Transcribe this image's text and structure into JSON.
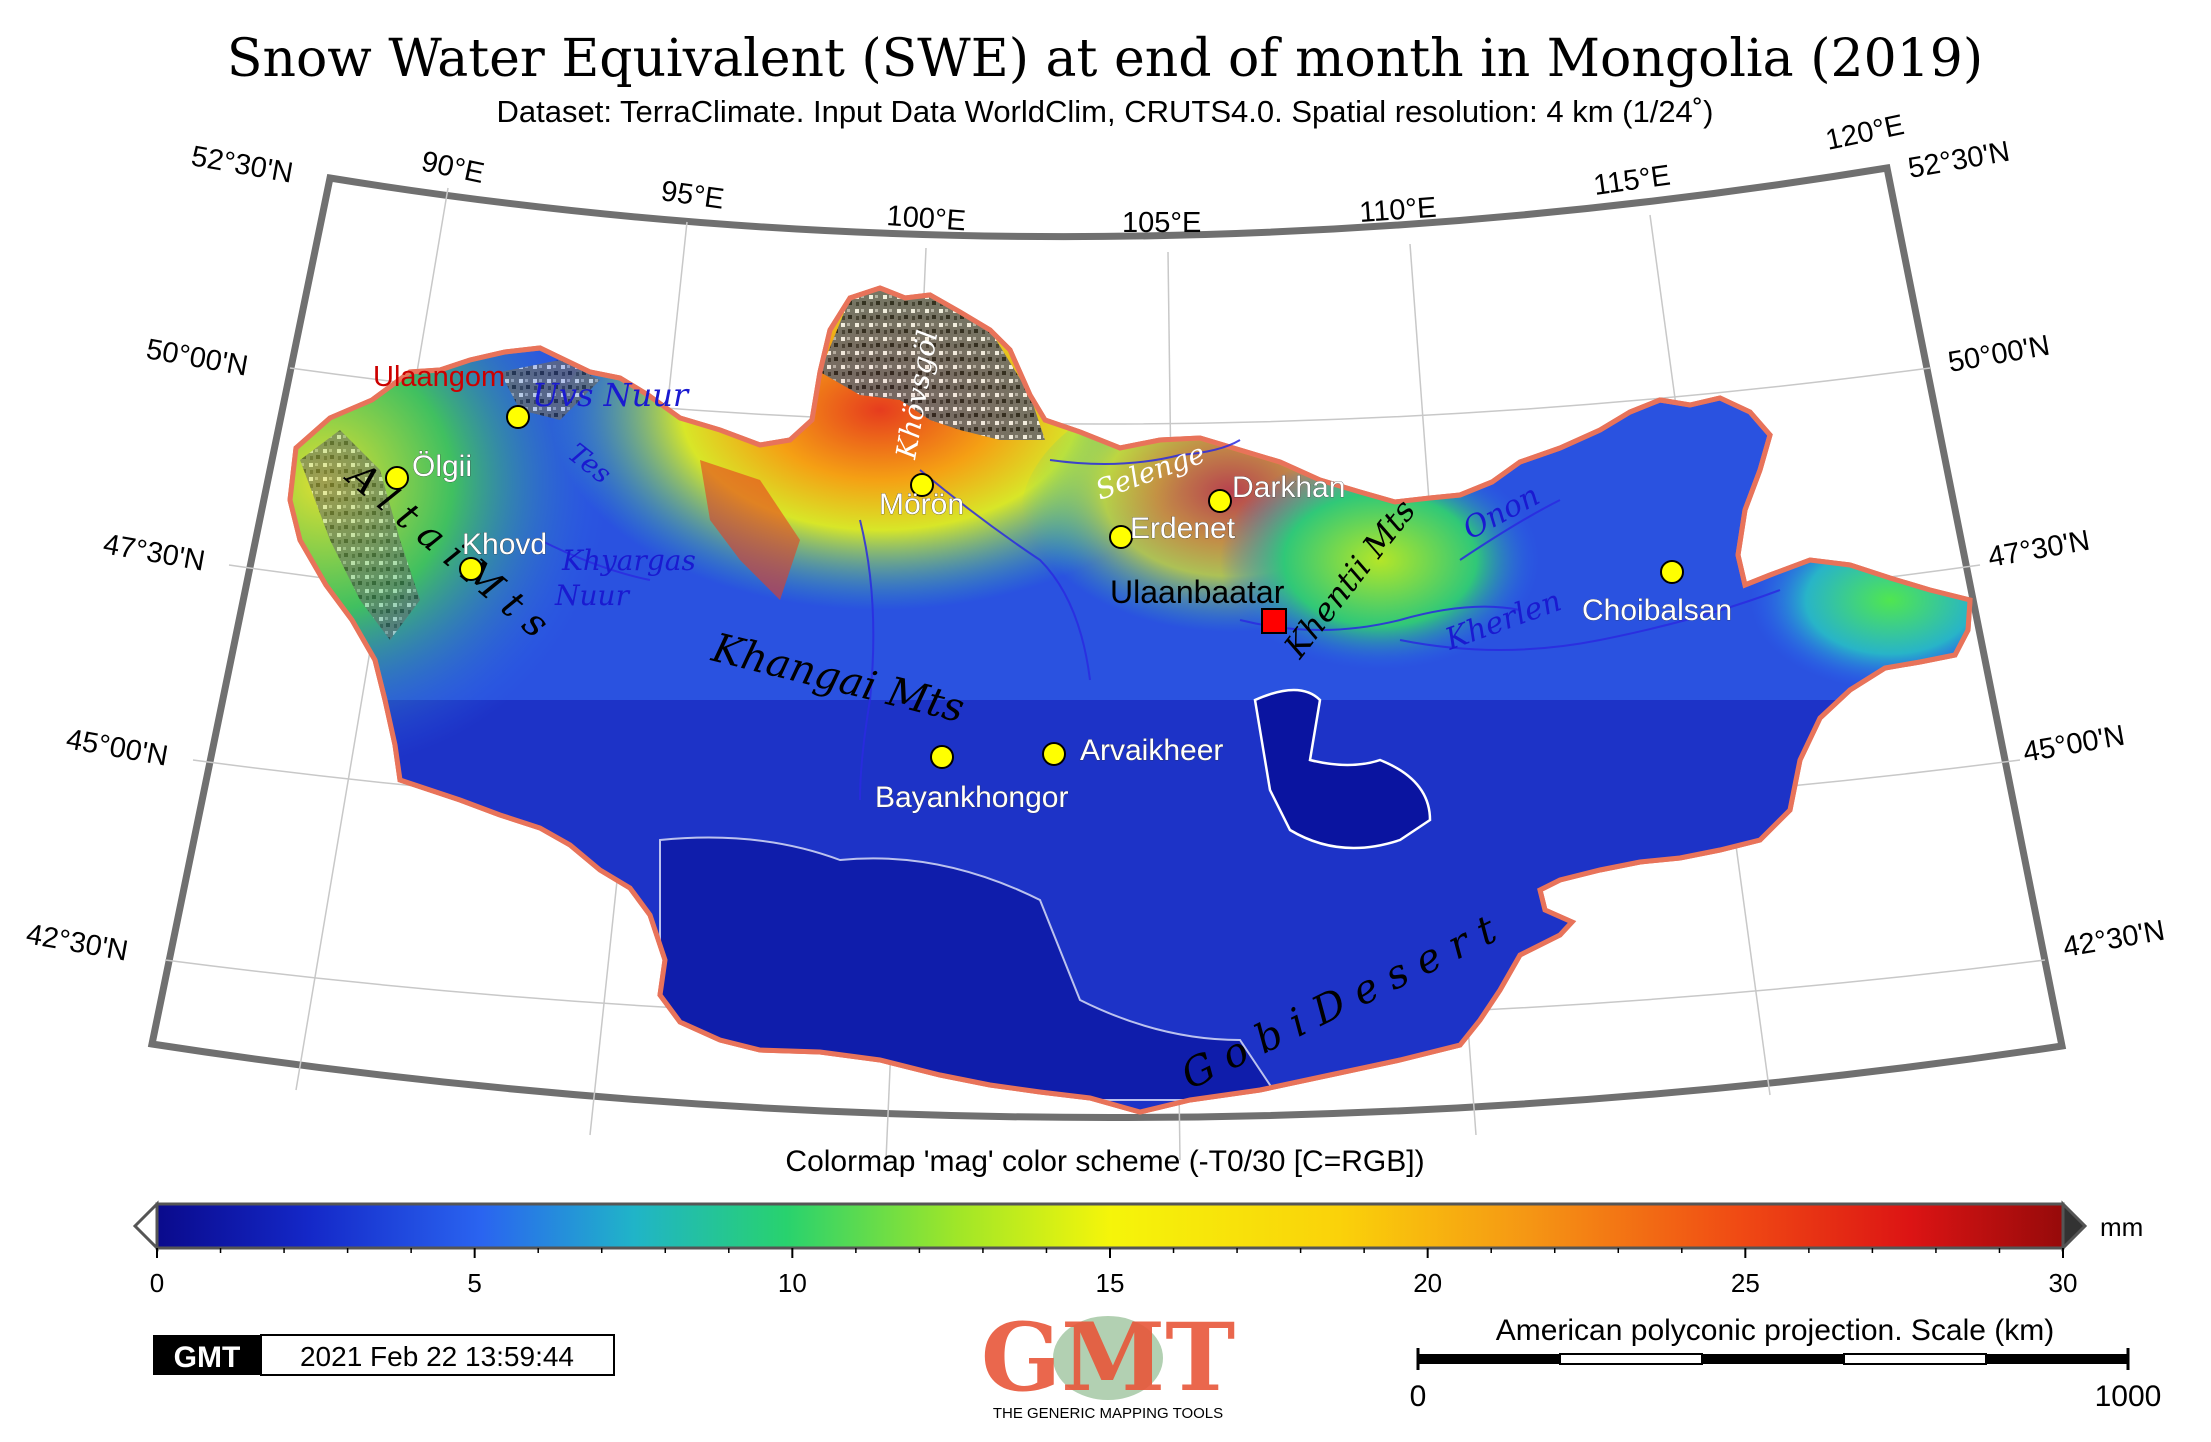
{
  "title": "Snow Water Equivalent (SWE) at end of month in Mongolia (2019)",
  "subtitle": "Dataset: TerraClimate. Input Data WorldClim, CRUTS4.0. Spatial resolution: 4 km (1/24˚)",
  "colormap_caption": "Colormap 'mag' color scheme (-T0/30 [C=RGB])",
  "colorbar": {
    "unit": "mm",
    "ticks": [
      "0",
      "5",
      "10",
      "15",
      "20",
      "25",
      "30"
    ],
    "min": 0,
    "max": 30
  },
  "longitude_labels": [
    "90°E",
    "95°E",
    "100°E",
    "105°E",
    "110°E",
    "115°E",
    "120°E"
  ],
  "latitude_labels_left": [
    "52°30'N",
    "50°00'N",
    "47°30'N",
    "45°00'N",
    "42°30'N"
  ],
  "latitude_labels_right": [
    "52°30'N",
    "50°00'N",
    "47°30'N",
    "45°00'N",
    "42°30'N"
  ],
  "cities": [
    {
      "name": "Ulaangom",
      "symbol": "circle"
    },
    {
      "name": "Ölgii",
      "symbol": "circle"
    },
    {
      "name": "Khovd",
      "symbol": "circle"
    },
    {
      "name": "Mörön",
      "symbol": "circle"
    },
    {
      "name": "Erdenet",
      "symbol": "circle"
    },
    {
      "name": "Darkhan",
      "symbol": "circle"
    },
    {
      "name": "Ulaanbaatar",
      "symbol": "square"
    },
    {
      "name": "Choibalsan",
      "symbol": "circle"
    },
    {
      "name": "Bayankhongor",
      "symbol": "circle"
    },
    {
      "name": "Arvaikheer",
      "symbol": "circle"
    }
  ],
  "features": {
    "uvs_nuur": "Uvs Nuur",
    "tes": "Tes",
    "khyargas_nuur_1": "Khyargas",
    "khyargas_nuur_2": "Nuur",
    "altai_mts": "A l t a i   M t s",
    "khangai_mts": "Khangai Mts",
    "khovsgol": "Khövsgöl",
    "selenge": "Selenge",
    "khentii_mts": "Khentii Mts",
    "onon": "Onon",
    "kherlen": "Kherlen",
    "gobi_desert": "G o b i   D e s e r t"
  },
  "timestamp": {
    "logo_text": "GMT",
    "value": "2021 Feb 22 13:59:44"
  },
  "gmt_logo": {
    "text": "GMT",
    "caption": "THE GENERIC MAPPING TOOLS"
  },
  "scalebar": {
    "caption": "American polyconic projection. Scale (km)",
    "start": "0",
    "end": "1000"
  },
  "colors": {
    "country_border": "#e8735a",
    "city_marker": "#ffff00",
    "capital_marker": "#ff0000",
    "capital_label": "#cc0000",
    "river": "#2a2ae0",
    "frame": "#707070"
  }
}
